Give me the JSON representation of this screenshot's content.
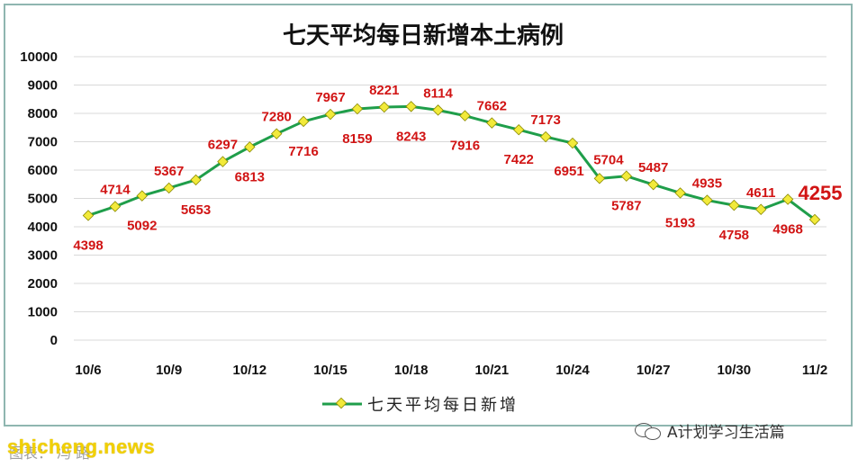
{
  "chart_data": {
    "type": "line",
    "title": "七天平均每日新增本土病例",
    "xlabel": "",
    "ylabel": "",
    "ylim": [
      0,
      10000
    ],
    "yticks": [
      0,
      1000,
      2000,
      3000,
      4000,
      5000,
      6000,
      7000,
      8000,
      9000,
      10000
    ],
    "grid": true,
    "legend_position": "bottom",
    "categories": [
      "10/6",
      "10/7",
      "10/8",
      "10/9",
      "10/10",
      "10/11",
      "10/12",
      "10/13",
      "10/14",
      "10/15",
      "10/16",
      "10/17",
      "10/18",
      "10/19",
      "10/20",
      "10/21",
      "10/22",
      "10/23",
      "10/24",
      "10/25",
      "10/26",
      "10/27",
      "10/28",
      "10/29",
      "10/30",
      "10/31",
      "11/1",
      "11/2"
    ],
    "xtick_labels": [
      "10/6",
      "10/9",
      "10/12",
      "10/15",
      "10/18",
      "10/21",
      "10/24",
      "10/27",
      "10/30",
      "11/2"
    ],
    "series": [
      {
        "name": "七天平均每日新增",
        "color": "#1f9e4a",
        "marker_color": "#f2ea3a",
        "values": [
          4398,
          4714,
          5092,
          5367,
          5653,
          6297,
          6813,
          7280,
          7716,
          7967,
          8159,
          8221,
          8243,
          8114,
          7916,
          7662,
          7422,
          7173,
          6951,
          5704,
          5787,
          5487,
          5193,
          4935,
          4758,
          4611,
          4968,
          4255
        ]
      }
    ]
  },
  "watermark": {
    "icon": "wechat-icon",
    "text": "A计划学习生活篇"
  },
  "site_text": "shicheng.news",
  "source_text": "图表：   冯   路"
}
